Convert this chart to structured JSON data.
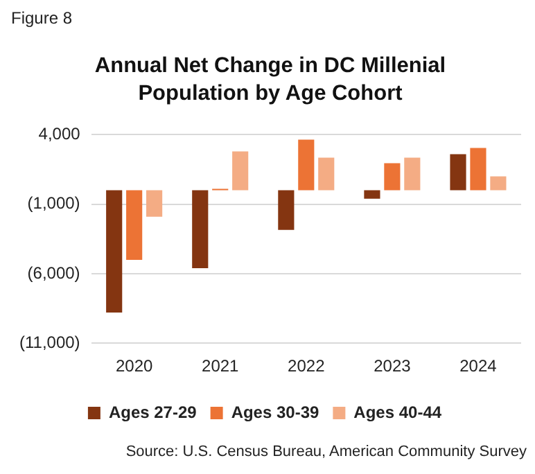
{
  "chart_data": {
    "type": "bar",
    "title": "Annual Net Change in DC Millenial Population by Age Cohort",
    "categories": [
      "2020",
      "2021",
      "2022",
      "2023",
      "2024"
    ],
    "series": [
      {
        "name": "Ages 27-29",
        "color": "#843511",
        "values": [
          -8800,
          -5600,
          -2850,
          -600,
          2600
        ]
      },
      {
        "name": "Ages 30-39",
        "color": "#ec7335",
        "values": [
          -5000,
          100,
          3650,
          1950,
          3050
        ]
      },
      {
        "name": "Ages 40-44",
        "color": "#f4ac84",
        "values": [
          -1900,
          2800,
          2350,
          2350,
          1000
        ]
      }
    ],
    "ylim": [
      -11000,
      4000
    ],
    "yticks": [
      {
        "value": 4000,
        "label": "4,000"
      },
      {
        "value": -1000,
        "label": "(1,000)"
      },
      {
        "value": -6000,
        "label": "(6,000)"
      },
      {
        "value": -11000,
        "label": "(11,000)"
      }
    ],
    "grid": "y",
    "legend": "bottom",
    "annotations": [
      "Figure 8",
      "Source: U.S. Census Bureau, American Community Survey"
    ]
  }
}
